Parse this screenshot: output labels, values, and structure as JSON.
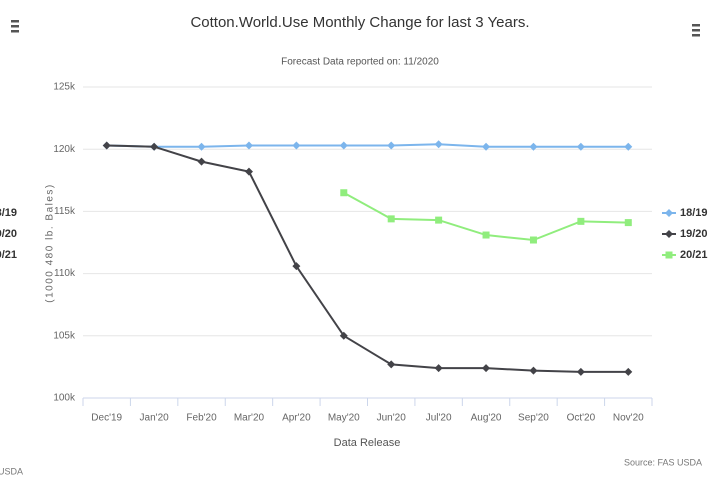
{
  "chart_data": {
    "type": "line",
    "title": "Cotton.World.Use Monthly Change for last 3 Years.",
    "subtitle": "Forecast Data reported on: 11/2020",
    "x_label": "Data Release",
    "y_label": "(1000 480 lb. Bales)",
    "source": "Source: FAS USDA",
    "categories": [
      "Dec'19",
      "Jan'20",
      "Feb'20",
      "Mar'20",
      "Apr'20",
      "May'20",
      "Jun'20",
      "Jul'20",
      "Aug'20",
      "Sep'20",
      "Oct'20",
      "Nov'20"
    ],
    "series": [
      {
        "name": "18/19",
        "color": "#7cb5ec",
        "values": [
          120300,
          120200,
          120200,
          120300,
          120300,
          120300,
          120300,
          120400,
          120200,
          120200,
          120200,
          120200
        ]
      },
      {
        "name": "19/20",
        "color": "#434348",
        "values": [
          120300,
          120200,
          119000,
          118200,
          110600,
          105000,
          102700,
          102400,
          102400,
          102200,
          102100,
          102100
        ]
      },
      {
        "name": "20/21",
        "color": "#90ed7d",
        "values": [
          null,
          null,
          null,
          null,
          null,
          116500,
          114400,
          114300,
          113100,
          112700,
          114200,
          114100
        ]
      }
    ],
    "ylim": [
      100000,
      125000
    ],
    "yticks": [
      {
        "value": 100000,
        "label": "100k"
      },
      {
        "value": 105000,
        "label": "105k"
      },
      {
        "value": 110000,
        "label": "110k"
      },
      {
        "value": 115000,
        "label": "115k"
      },
      {
        "value": 120000,
        "label": "120k"
      },
      {
        "value": 125000,
        "label": "125k"
      }
    ],
    "grid": true,
    "legend": "right"
  }
}
